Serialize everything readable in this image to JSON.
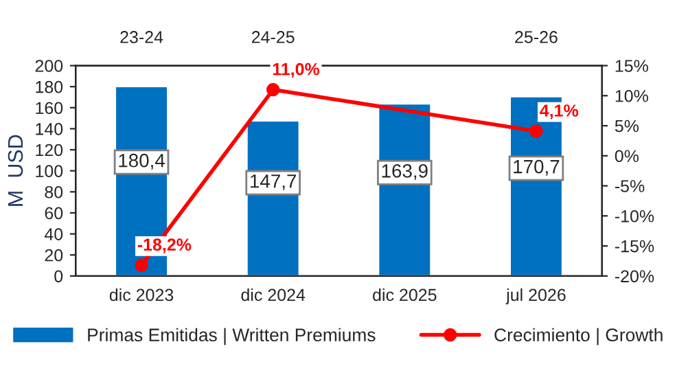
{
  "chart_data": {
    "type": "bar",
    "ylabel": "M  USD",
    "categories": [
      "dic 2023",
      "dic 2024",
      "dic 2025",
      "jul 2026"
    ],
    "series": [
      {
        "name": "Primas Emitidas | Written Premiums",
        "color": "#0070c0",
        "values": [
          180.4,
          147.7,
          163.9,
          170.7
        ],
        "value_labels": [
          "180,4",
          "147,7",
          "163,9",
          "170,7"
        ]
      },
      {
        "name": "Crecimiento | Growth",
        "type": "line",
        "axis": "y2",
        "color": "#ff0000",
        "marker": "circle",
        "values": [
          -18.2,
          11.0,
          null,
          4.1
        ],
        "value_labels": [
          "-18,2%",
          "11,0%",
          null,
          "4,1%"
        ]
      }
    ],
    "ylim": [
      0,
      200
    ],
    "yticks": [
      0,
      20,
      40,
      60,
      80,
      100,
      120,
      140,
      160,
      180,
      200
    ],
    "y2lim": [
      -20,
      15
    ],
    "y2ticks": [
      {
        "value": 15,
        "label": "15%"
      },
      {
        "value": 10,
        "label": "10%"
      },
      {
        "value": 5,
        "label": "5%"
      },
      {
        "value": 0,
        "label": "0%"
      },
      {
        "value": -5,
        "label": "-5%"
      },
      {
        "value": -10,
        "label": "-10%"
      },
      {
        "value": -15,
        "label": "-15%"
      },
      {
        "value": -20,
        "label": "-20%"
      }
    ],
    "annotations": [
      "23-24",
      "24-25",
      "25-26"
    ],
    "grid": false,
    "legend": "bottom"
  }
}
